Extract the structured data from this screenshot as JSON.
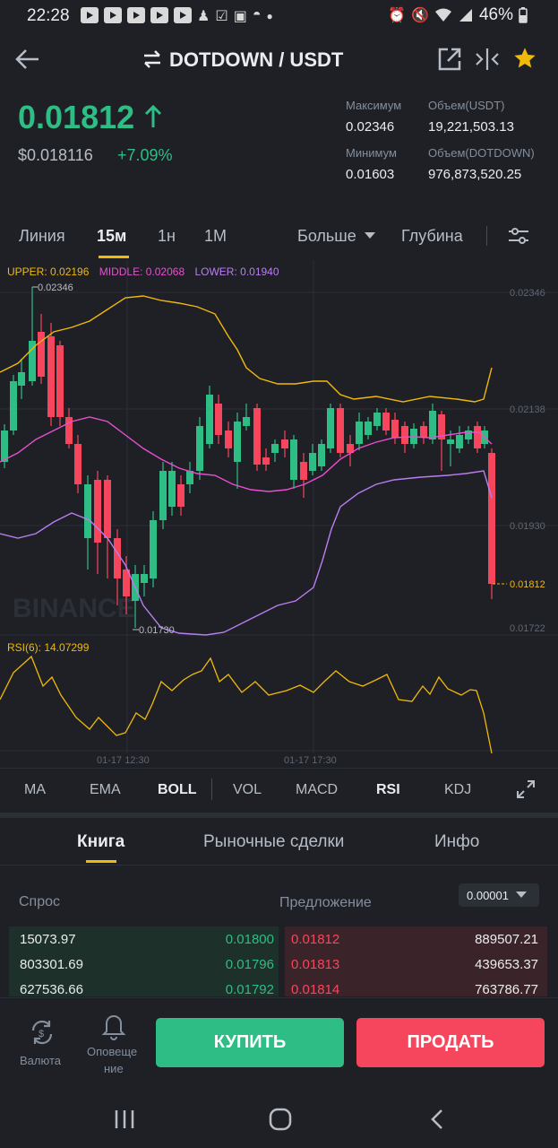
{
  "status_bar": {
    "time": "22:28",
    "battery": "46%"
  },
  "header": {
    "pair": "DOTDOWN / USDT"
  },
  "price": {
    "last": "0.01812",
    "usd": "$0.018116",
    "change": "+7.09%"
  },
  "stats": {
    "max_label": "Максимум",
    "max_value": "0.02346",
    "min_label": "Минимум",
    "min_value": "0.01603",
    "vol_usdt_label": "Объем(USDT)",
    "vol_usdt_value": "19,221,503.13",
    "vol_base_label": "Объем(DOTDOWN)",
    "vol_base_value": "976,873,520.25"
  },
  "timeframes": {
    "line": "Линия",
    "m15": "15м",
    "h1": "1н",
    "mon": "1М",
    "more": "Больше",
    "depth": "Глубина"
  },
  "chart_legend": {
    "upper": "UPPER: 0.02196",
    "middle": "MIDDLE: 0.02068",
    "lower": "LOWER: 0.01940",
    "high_mark": "0.02346",
    "low_mark": "0.01730",
    "rsi": "RSI(6): 14.07299",
    "watermark": "BINANCE",
    "price_marker": "0.01812",
    "y_ticks": [
      "0.02346",
      "0.02138",
      "0.01930",
      "0.01722"
    ],
    "x_ticks": [
      "01-17 12:30",
      "01-17 17:30"
    ]
  },
  "indicators": [
    "MA",
    "EMA",
    "BOLL",
    "VOL",
    "MACD",
    "RSI",
    "KDJ"
  ],
  "tabs": {
    "book": "Книга",
    "trades": "Рыночные сделки",
    "info": "Инфо"
  },
  "book": {
    "bid_label": "Спрос",
    "ask_label": "Предложение",
    "precision": "0.00001",
    "bids": [
      {
        "qty": "15073.97",
        "price": "0.01800"
      },
      {
        "qty": "803301.69",
        "price": "0.01796"
      },
      {
        "qty": "627536.66",
        "price": "0.01792"
      }
    ],
    "asks": [
      {
        "price": "0.01812",
        "qty": "889507.21"
      },
      {
        "price": "0.01813",
        "qty": "439653.37"
      },
      {
        "price": "0.01814",
        "qty": "763786.77"
      }
    ]
  },
  "bottom": {
    "currency": "Валюта",
    "alerts_1": "Оповеще",
    "alerts_2": "ние",
    "buy": "КУПИТЬ",
    "sell": "ПРОДАТЬ"
  },
  "colors": {
    "green": "#2ebd85",
    "red": "#f6465d",
    "accent": "#f0b90b"
  }
}
